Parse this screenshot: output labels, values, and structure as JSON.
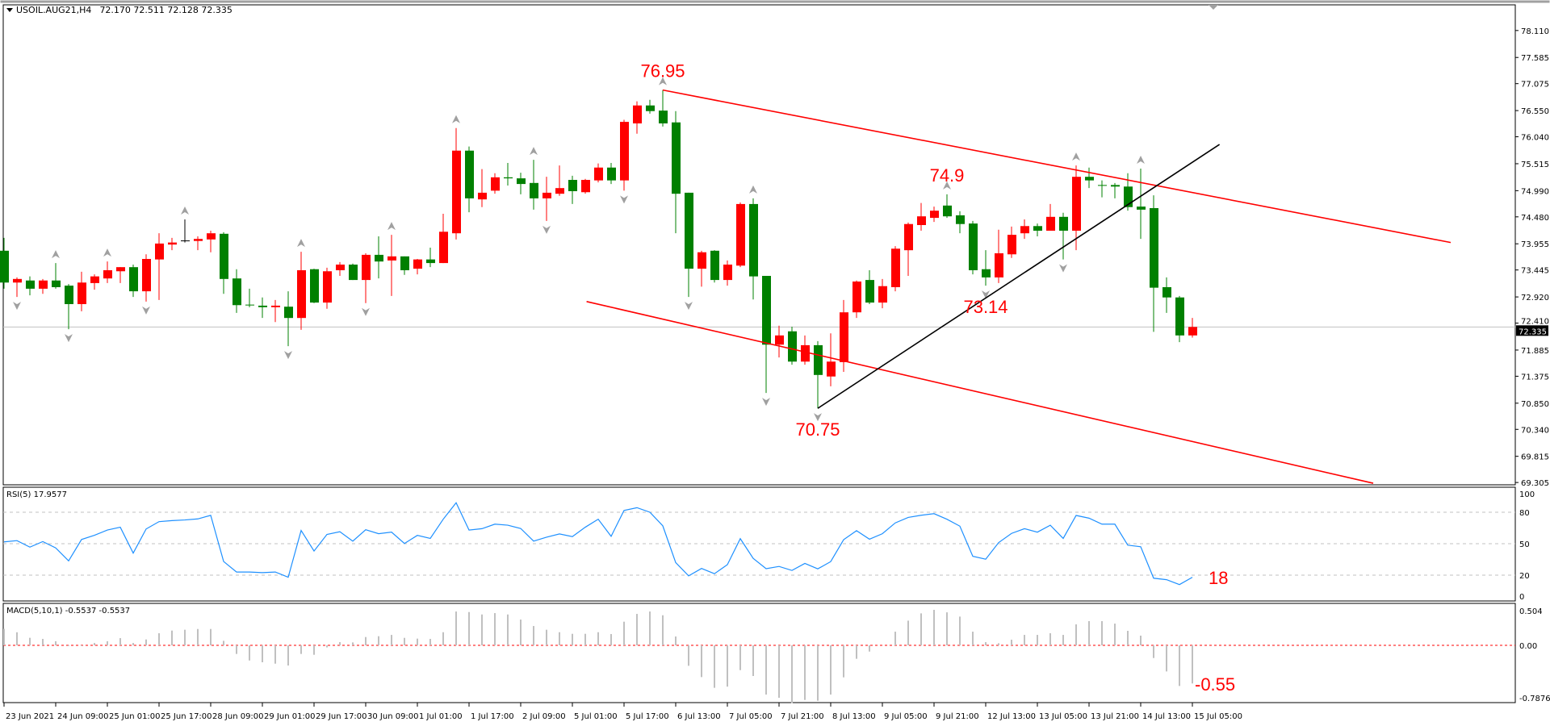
{
  "header": {
    "symbol": "USOIL.AUG21,H4",
    "ohlc_text": "72.170 72.511 72.128 72.335"
  },
  "rsi_label": "RSI(5) 17.9577",
  "macd_label": "MACD(5,10,1) -0.5537 -0.5537",
  "colors": {
    "bull": "#ff0000",
    "bear": "#008000",
    "doji": "#000000",
    "rsi_line": "#1e90ff",
    "macd_hist": "#c0c0c0",
    "annotation": "#ff0000",
    "channel": "#ff0000",
    "trendline": "#000000",
    "grid_level": "#c0c0c0"
  },
  "chart_data": [
    {
      "type": "candlestick",
      "title": "USOIL.AUG21,H4",
      "ylim": [
        69.26,
        78.61
      ],
      "yticks": [
        "78.110",
        "77.585",
        "77.075",
        "76.550",
        "76.040",
        "75.515",
        "74.990",
        "74.480",
        "73.955",
        "73.445",
        "72.920",
        "72.410",
        "71.885",
        "71.375",
        "70.850",
        "70.340",
        "69.815",
        "69.305"
      ],
      "xtick_labels": [
        "23 Jun 2021",
        "24 Jun 09:00",
        "25 Jun 01:00",
        "25 Jun 17:00",
        "28 Jun 09:00",
        "29 Jun 01:00",
        "29 Jun 17:00",
        "30 Jun 09:00",
        "1 Jul 01:00",
        "1 Jul 17:00",
        "2 Jul 09:00",
        "5 Jul 01:00",
        "5 Jul 17:00",
        "6 Jul 13:00",
        "7 Jul 05:00",
        "7 Jul 21:00",
        "8 Jul 13:00",
        "9 Jul 05:00",
        "9 Jul 21:00",
        "12 Jul 13:00",
        "13 Jul 05:00",
        "13 Jul 21:00",
        "14 Jul 13:00",
        "15 Jul 05:00"
      ],
      "xtick_every_bars": 4,
      "current_price": "72.335",
      "ohlc": [
        [
          73.82,
          74.07,
          73.08,
          73.2
        ],
        [
          73.2,
          73.3,
          72.92,
          73.27
        ],
        [
          73.24,
          73.32,
          72.95,
          73.08
        ],
        [
          73.08,
          73.27,
          72.98,
          73.24
        ],
        [
          73.24,
          73.58,
          73.08,
          73.11
        ],
        [
          73.14,
          73.17,
          72.29,
          72.78
        ],
        [
          72.78,
          73.41,
          72.64,
          73.2
        ],
        [
          73.19,
          73.36,
          73.06,
          73.32
        ],
        [
          73.28,
          73.61,
          73.19,
          73.44
        ],
        [
          73.42,
          73.5,
          73.19,
          73.5
        ],
        [
          73.5,
          73.55,
          72.92,
          73.03
        ],
        [
          73.03,
          73.75,
          72.83,
          73.66
        ],
        [
          73.65,
          74.16,
          72.86,
          73.96
        ],
        [
          73.94,
          74.07,
          73.83,
          73.98
        ],
        [
          74.02,
          74.43,
          73.98,
          74.02
        ],
        [
          74.01,
          74.1,
          73.83,
          74.05
        ],
        [
          74.04,
          74.21,
          73.79,
          74.16
        ],
        [
          74.15,
          74.18,
          72.98,
          73.27
        ],
        [
          73.28,
          73.46,
          72.61,
          72.76
        ],
        [
          72.77,
          73.08,
          72.72,
          72.76
        ],
        [
          72.75,
          72.91,
          72.51,
          72.72
        ],
        [
          72.72,
          72.86,
          72.43,
          72.75
        ],
        [
          72.73,
          73.03,
          71.96,
          72.51
        ],
        [
          72.51,
          73.8,
          72.28,
          73.44
        ],
        [
          73.46,
          73.47,
          72.8,
          72.81
        ],
        [
          72.81,
          73.49,
          72.69,
          73.42
        ],
        [
          73.44,
          73.6,
          73.33,
          73.55
        ],
        [
          73.55,
          73.57,
          73.25,
          73.25
        ],
        [
          73.25,
          73.77,
          72.8,
          73.74
        ],
        [
          73.74,
          74.1,
          73.28,
          73.61
        ],
        [
          73.63,
          74.13,
          72.94,
          73.71
        ],
        [
          73.71,
          73.71,
          73.35,
          73.44
        ],
        [
          73.47,
          73.66,
          73.36,
          73.65
        ],
        [
          73.65,
          73.88,
          73.5,
          73.58
        ],
        [
          73.58,
          74.54,
          73.58,
          74.19
        ],
        [
          74.16,
          76.21,
          74.04,
          75.77
        ],
        [
          75.77,
          75.85,
          74.57,
          74.84
        ],
        [
          74.82,
          75.41,
          74.67,
          74.95
        ],
        [
          74.99,
          75.33,
          74.93,
          75.25
        ],
        [
          75.25,
          75.53,
          75.09,
          75.23
        ],
        [
          75.23,
          75.34,
          74.92,
          75.12
        ],
        [
          75.14,
          75.59,
          74.62,
          74.84
        ],
        [
          74.84,
          75.26,
          74.4,
          74.95
        ],
        [
          74.93,
          75.48,
          74.89,
          75.04
        ],
        [
          75.2,
          75.28,
          74.73,
          74.98
        ],
        [
          74.96,
          75.22,
          74.93,
          75.2
        ],
        [
          75.19,
          75.52,
          75.15,
          75.44
        ],
        [
          75.44,
          75.53,
          75.12,
          75.19
        ],
        [
          75.19,
          76.37,
          74.99,
          76.33
        ],
        [
          76.3,
          76.73,
          76.1,
          76.65
        ],
        [
          76.65,
          76.76,
          76.49,
          76.54
        ],
        [
          76.55,
          76.95,
          76.24,
          76.3
        ],
        [
          76.32,
          76.54,
          74.16,
          74.93
        ],
        [
          74.95,
          74.95,
          72.92,
          73.47
        ],
        [
          73.47,
          73.82,
          73.12,
          73.79
        ],
        [
          73.82,
          73.83,
          73.2,
          73.25
        ],
        [
          73.25,
          73.63,
          73.14,
          73.55
        ],
        [
          73.53,
          74.76,
          73.5,
          74.73
        ],
        [
          74.73,
          74.84,
          72.87,
          73.32
        ],
        [
          73.33,
          73.33,
          71.05,
          71.99
        ],
        [
          71.99,
          72.36,
          71.74,
          72.17
        ],
        [
          72.25,
          72.34,
          71.6,
          71.66
        ],
        [
          71.66,
          72.17,
          71.6,
          71.98
        ],
        [
          71.98,
          72.06,
          70.75,
          71.4
        ],
        [
          71.37,
          72.21,
          71.18,
          71.66
        ],
        [
          71.65,
          72.86,
          71.46,
          72.62
        ],
        [
          72.62,
          73.24,
          72.51,
          73.22
        ],
        [
          73.25,
          73.44,
          72.78,
          72.81
        ],
        [
          72.81,
          73.27,
          72.7,
          73.13
        ],
        [
          73.11,
          73.91,
          73.03,
          73.86
        ],
        [
          73.83,
          74.37,
          73.33,
          74.34
        ],
        [
          74.32,
          74.75,
          74.21,
          74.49
        ],
        [
          74.46,
          74.68,
          74.38,
          74.6
        ],
        [
          74.7,
          74.92,
          74.46,
          74.49
        ],
        [
          74.51,
          74.59,
          74.16,
          74.34
        ],
        [
          74.35,
          74.4,
          73.36,
          73.44
        ],
        [
          73.46,
          73.83,
          73.14,
          73.3
        ],
        [
          73.3,
          74.23,
          73.19,
          73.77
        ],
        [
          73.75,
          74.29,
          73.68,
          74.13
        ],
        [
          74.16,
          74.43,
          74.05,
          74.3
        ],
        [
          74.3,
          74.35,
          74.1,
          74.21
        ],
        [
          74.21,
          74.73,
          74.21,
          74.48
        ],
        [
          74.48,
          74.56,
          73.65,
          74.21
        ],
        [
          74.21,
          75.48,
          73.83,
          75.26
        ],
        [
          75.26,
          75.44,
          75.04,
          75.19
        ],
        [
          75.1,
          75.19,
          74.86,
          75.09
        ],
        [
          75.1,
          75.14,
          74.84,
          75.07
        ],
        [
          75.07,
          75.33,
          74.6,
          74.67
        ],
        [
          74.68,
          75.42,
          74.05,
          74.62
        ],
        [
          74.65,
          74.9,
          72.24,
          73.1
        ],
        [
          73.11,
          73.3,
          72.61,
          72.91
        ],
        [
          72.91,
          72.94,
          72.04,
          72.17
        ],
        [
          72.17,
          72.511,
          72.128,
          72.335
        ]
      ],
      "fractals_up": [
        4,
        8,
        14,
        23,
        30,
        35,
        41,
        51,
        58,
        73,
        83,
        88
      ],
      "fractals_down": [
        1,
        5,
        11,
        22,
        28,
        42,
        48,
        53,
        59,
        63,
        76,
        82
      ],
      "lines": [
        {
          "kind": "channel-upper",
          "from": {
            "bar": 51,
            "price": 76.95
          },
          "to": {
            "bar": 112,
            "price": 73.98
          }
        },
        {
          "kind": "channel-lower",
          "from": {
            "bar": 45.1,
            "price": 72.83
          },
          "to": {
            "bar": 106,
            "price": 69.29
          }
        },
        {
          "kind": "trendline",
          "from": {
            "bar": 63,
            "price": 70.75
          },
          "to": {
            "bar": 94.1,
            "price": 75.89
          }
        }
      ],
      "annotations": [
        {
          "text": "76.95",
          "bar": 51,
          "price": 76.95,
          "pos": "above"
        },
        {
          "text": "74.9",
          "bar": 73,
          "price": 74.92,
          "pos": "above"
        },
        {
          "text": "73.14",
          "bar": 76,
          "price": 73.14,
          "pos": "below"
        },
        {
          "text": "70.75",
          "bar": 63,
          "price": 70.75,
          "pos": "below"
        }
      ]
    },
    {
      "type": "line",
      "title": "RSI(5) 17.9577",
      "ylim": [
        -4.6,
        103.8
      ],
      "yticks": [
        "100",
        "80",
        "50",
        "20",
        "0"
      ],
      "levels": [
        80,
        50,
        20
      ],
      "values": [
        51.7,
        52.9,
        46.7,
        52,
        46,
        33.6,
        54,
        58,
        63,
        65.7,
        41,
        64,
        71,
        72,
        72.6,
        73.6,
        77,
        33,
        23,
        23,
        22.4,
        23,
        18,
        62.6,
        43,
        58.8,
        61.4,
        52.4,
        63.3,
        59.5,
        61,
        50.2,
        57.9,
        55,
        73.3,
        89,
        63,
        64.3,
        68.6,
        67.6,
        64.5,
        52.4,
        56.2,
        59.3,
        56.7,
        65.7,
        73.3,
        57,
        81.7,
        84.3,
        80,
        67,
        32,
        19.3,
        26.4,
        21.4,
        30,
        54.8,
        36,
        26.2,
        28.3,
        24.5,
        31.2,
        26,
        32.9,
        53.8,
        62.4,
        54.3,
        59.5,
        69.8,
        75,
        77.1,
        78.6,
        73.3,
        66.7,
        38,
        35.2,
        51,
        59.8,
        64.3,
        61,
        67.6,
        55,
        76.9,
        74.3,
        68.6,
        68.6,
        48.6,
        47.1,
        17.1,
        15.7,
        11,
        17.96
      ],
      "annotation": "18"
    },
    {
      "type": "bar",
      "title": "MACD(5,10,1) -0.5537 -0.5537",
      "ylim": [
        -0.832,
        0.61
      ],
      "yticks": [
        "0.504",
        "0.00",
        "-0.7876"
      ],
      "values": [
        0.24,
        0.19,
        0.11,
        0.094,
        0.06,
        -0.01,
        -0.01,
        0.035,
        0.06,
        0.105,
        0.035,
        0.086,
        0.176,
        0.215,
        0.227,
        0.238,
        0.238,
        0.066,
        -0.125,
        -0.22,
        -0.246,
        -0.266,
        -0.293,
        -0.125,
        -0.137,
        -0.03,
        0.047,
        0.043,
        0.121,
        0.133,
        0.152,
        0.109,
        0.098,
        0.094,
        0.191,
        0.492,
        0.484,
        0.449,
        0.469,
        0.449,
        0.375,
        0.281,
        0.227,
        0.191,
        0.168,
        0.168,
        0.191,
        0.164,
        0.344,
        0.457,
        0.492,
        0.4375,
        0.129,
        -0.297,
        -0.461,
        -0.617,
        -0.6,
        -0.36,
        -0.445,
        -0.715,
        -0.762,
        -0.84,
        -0.793,
        -0.805,
        -0.715,
        -0.465,
        -0.195,
        -0.09,
        0.0,
        0.199,
        0.359,
        0.465,
        0.516,
        0.48,
        0.418,
        0.199,
        0.047,
        0.031,
        0.082,
        0.152,
        0.152,
        0.176,
        0.152,
        0.305,
        0.352,
        0.352,
        0.316,
        0.211,
        0.141,
        -0.184,
        -0.379,
        -0.59,
        -0.5537
      ],
      "annotation": "-0.55"
    }
  ]
}
